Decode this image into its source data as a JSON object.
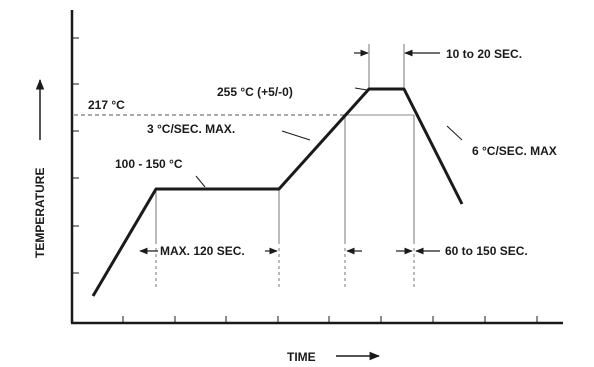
{
  "axes": {
    "x_label": "TIME",
    "y_label": "TEMPERATURE"
  },
  "annotations": {
    "liquidus_temp": "217 °C",
    "peak_temp": "255 °C (+5/-0)",
    "peak_hold_time": "10 to 20 SEC.",
    "ramp_up_rate": "3 °C/SEC. MAX.",
    "ramp_down_rate": "6 °C/SEC. MAX",
    "preheat_temp": "100 - 150 °C",
    "preheat_time": "MAX. 120 SEC.",
    "time_above_liquidus": "60 to 150 SEC."
  },
  "colors": {
    "line": "#1a1a1a",
    "guide": "#888888",
    "text": "#1a1a1a"
  }
}
